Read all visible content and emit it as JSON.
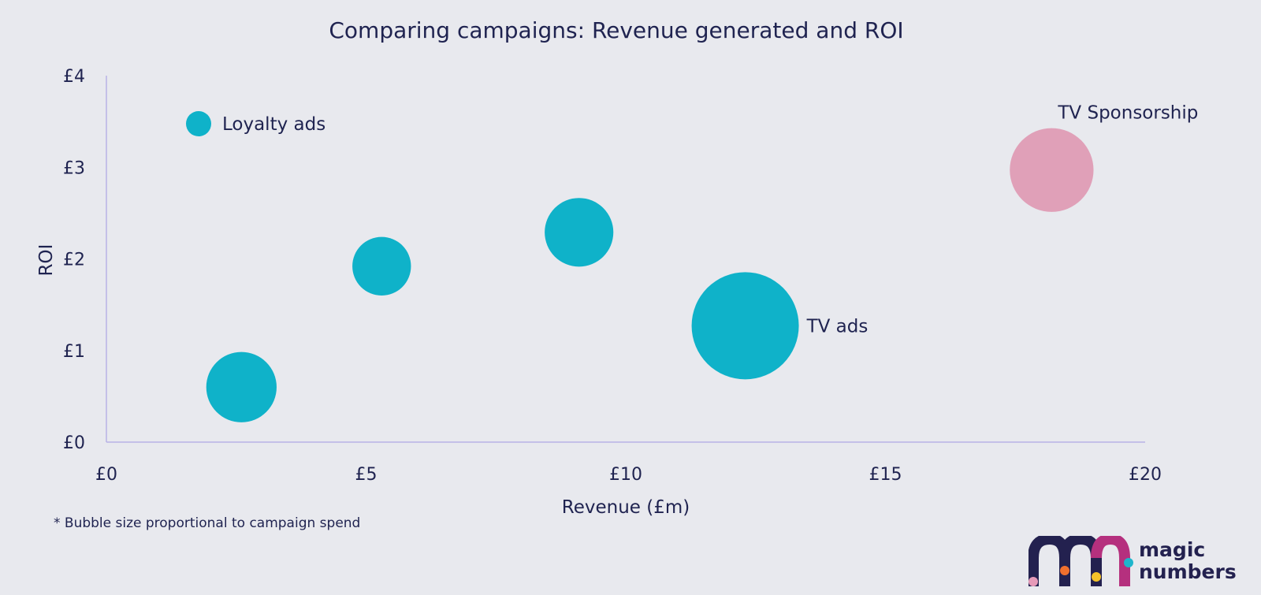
{
  "chart_data": {
    "type": "bubble",
    "title": "Comparing campaigns: Revenue generated and ROI",
    "xlabel": "Revenue (£m)",
    "ylabel": "ROI",
    "xlim": [
      0,
      20
    ],
    "ylim": [
      0,
      4
    ],
    "x_ticks": [
      0,
      5,
      10,
      15,
      20
    ],
    "y_ticks": [
      0,
      1,
      2,
      3,
      4
    ],
    "x_tick_labels": [
      "£0",
      "£5",
      "£10",
      "£15",
      "£20"
    ],
    "y_tick_labels": [
      "£0",
      "£1",
      "£2",
      "£3",
      "£4"
    ],
    "points": [
      {
        "name": "campaign-a",
        "x": 2.6,
        "y": 0.6,
        "relative_spend": 0.42,
        "color": "#0fb2c9",
        "label": ""
      },
      {
        "name": "campaign-b",
        "x": 5.3,
        "y": 1.92,
        "relative_spend": 0.35,
        "color": "#0fb2c9",
        "label": ""
      },
      {
        "name": "campaign-c",
        "x": 9.1,
        "y": 2.29,
        "relative_spend": 0.41,
        "color": "#0fb2c9",
        "label": ""
      },
      {
        "name": "tv-ads",
        "x": 12.3,
        "y": 1.27,
        "relative_spend": 0.64,
        "color": "#0fb2c9",
        "label": "TV ads"
      },
      {
        "name": "tv-sponsorship",
        "x": 18.2,
        "y": 2.97,
        "relative_spend": 0.5,
        "color": "#e0a0b8",
        "label": "TV Sponsorship"
      }
    ],
    "legend": [
      {
        "label": "Loyalty ads",
        "color": "#0fb2c9",
        "position": "top-left"
      }
    ],
    "grid": false
  },
  "footnote": "* Bubble size proportional to campaign spend",
  "brand": {
    "line1": "magic",
    "line2": "numbers",
    "colors": {
      "navy": "#23214f",
      "magenta": "#b5307e",
      "pink": "#e69ab8",
      "orange": "#f0702e",
      "yellow": "#f5c229",
      "teal": "#1eb5cc"
    }
  }
}
